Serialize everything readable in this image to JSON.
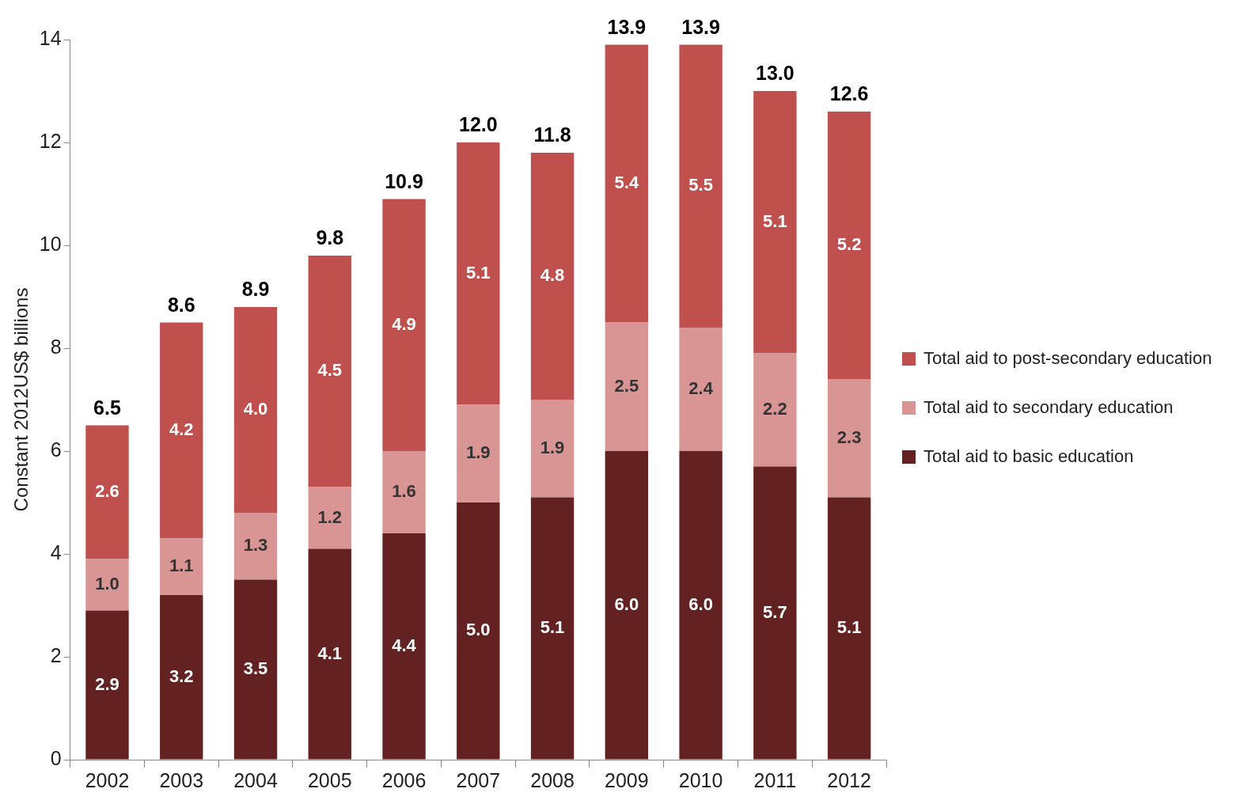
{
  "chart_data": {
    "type": "bar",
    "stacked": true,
    "ylabel": "Constant 2012US$ billions",
    "categories": [
      "2002",
      "2003",
      "2004",
      "2005",
      "2006",
      "2007",
      "2008",
      "2009",
      "2010",
      "2011",
      "2012"
    ],
    "series": [
      {
        "name": "Total aid to basic education",
        "color": "#632121",
        "values": [
          2.9,
          3.2,
          3.5,
          4.1,
          4.4,
          5.0,
          5.1,
          6.0,
          6.0,
          5.7,
          5.1
        ],
        "value_labels": [
          "2.9",
          "3.2",
          "3.5",
          "4.1",
          "4.4",
          "5.0",
          "5.1",
          "6.0",
          "6.0",
          "5.7",
          "5.1"
        ]
      },
      {
        "name": "Total aid to secondary education",
        "color": "#d99594",
        "values": [
          1.0,
          1.1,
          1.3,
          1.2,
          1.6,
          1.9,
          1.9,
          2.5,
          2.4,
          2.2,
          2.3
        ],
        "value_labels": [
          "1.0",
          "1.1",
          "1.3",
          "1.2",
          "1.6",
          "1.9",
          "1.9",
          "2.5",
          "2.4",
          "2.2",
          "2.3"
        ]
      },
      {
        "name": "Total aid to post-secondary education",
        "color": "#c0504d",
        "values": [
          2.6,
          4.2,
          4.0,
          4.5,
          4.9,
          5.1,
          4.8,
          5.4,
          5.5,
          5.1,
          5.2
        ],
        "value_labels": [
          "2.6",
          "4.2",
          "4.0",
          "4.5",
          "4.9",
          "5.1",
          "4.8",
          "5.4",
          "5.5",
          "5.1",
          "5.2"
        ]
      }
    ],
    "totals": [
      "6.5",
      "8.6",
      "8.9",
      "9.8",
      "10.9",
      "12.0",
      "11.8",
      "13.9",
      "13.9",
      "13.0",
      "12.6"
    ],
    "ylim": [
      0,
      14
    ],
    "yticks": [
      0,
      2,
      4,
      6,
      8,
      10,
      12,
      14
    ],
    "grid": false,
    "legend": "right"
  }
}
